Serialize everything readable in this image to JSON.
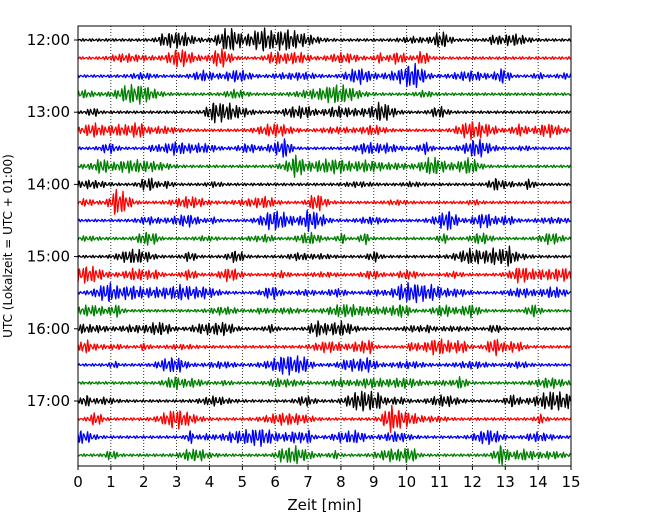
{
  "chart_data": {
    "type": "line",
    "title": "",
    "xlabel": "Zeit  [min]",
    "ylabel": "UTC (Lokalzeit = UTC + 01:00)",
    "xlim": [
      0,
      15
    ],
    "x_ticks": [
      "0",
      "1",
      "2",
      "3",
      "4",
      "5",
      "6",
      "7",
      "8",
      "9",
      "10",
      "11",
      "12",
      "13",
      "14",
      "15"
    ],
    "y_ticks": [
      "12:00",
      "13:00",
      "14:00",
      "15:00",
      "16:00",
      "17:00"
    ],
    "trace_interval_minutes": 15,
    "first_trace": "12:00",
    "trace_count": 24,
    "trace_colors": [
      "#000000",
      "#ff0000",
      "#0000ff",
      "#008000"
    ],
    "grid": "vertical dotted at each minute",
    "legend": "none"
  }
}
